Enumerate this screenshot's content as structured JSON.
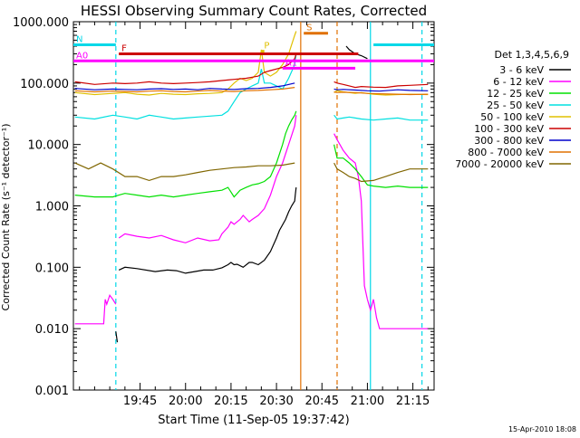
{
  "chart_data": {
    "type": "line",
    "title": "HESSI Observing Summary Count Rates, Corrected",
    "xlabel": "Start Time (11-Sep-05 19:37:42)",
    "ylabel": "Corrected Count Rate (s⁻¹ detector⁻¹)",
    "ylim": [
      0.001,
      1000
    ],
    "yscale": "log",
    "xlim_minutes": [
      -37,
      82
    ],
    "x_tick_labels": [
      "19:45",
      "20:00",
      "20:15",
      "20:30",
      "20:45",
      "21:00",
      "21:15"
    ],
    "x_tick_minutes": [
      -15,
      0,
      15,
      30,
      45,
      60,
      75
    ],
    "y_tick_labels": [
      "0.001",
      "0.010",
      "0.100",
      "1.000",
      "10.000",
      "100.000",
      "1000.000"
    ],
    "y_tick_values": [
      0.001,
      0.01,
      0.1,
      1,
      10,
      100,
      1000
    ],
    "legend_title": "Det 1,3,4,5,6,9",
    "legend_position": "right",
    "footer_date": "15-Apr-2010 18:08",
    "series": [
      {
        "name": "3 - 6 keV",
        "color": "#000000",
        "segments": [
          {
            "x": [
              -23,
              -22.5
            ],
            "y": [
              0.009,
              0.006
            ]
          },
          {
            "x": [
              -22,
              -20,
              -16,
              -10,
              -6,
              -3,
              0,
              3,
              6,
              9,
              12,
              14,
              15,
              16,
              17,
              19,
              21,
              22,
              24,
              26,
              28,
              30,
              31,
              33,
              34,
              35,
              36,
              36.2,
              36.5
            ],
            "y": [
              0.09,
              0.1,
              0.095,
              0.085,
              0.09,
              0.088,
              0.08,
              0.085,
              0.09,
              0.09,
              0.098,
              0.11,
              0.12,
              0.11,
              0.112,
              0.1,
              0.12,
              0.12,
              0.11,
              0.13,
              0.18,
              0.3,
              0.4,
              0.6,
              0.8,
              1.0,
              1.2,
              1.5,
              2.0
            ]
          },
          {
            "x": [
              53,
              54,
              56,
              58,
              60
            ],
            "y": [
              400,
              350,
              300,
              280,
              250
            ]
          }
        ]
      },
      {
        "name": "6 - 12 keV",
        "color": "#ff00ff",
        "segments": [
          {
            "x": [
              -36.5,
              -30,
              -27,
              -26.5,
              -26,
              -25,
              -24,
              -23
            ],
            "y": [
              0.012,
              0.012,
              0.012,
              0.03,
              0.025,
              0.035,
              0.03,
              0.025
            ]
          },
          {
            "x": [
              -22,
              -20,
              -16,
              -12,
              -8,
              -4,
              0,
              4,
              8,
              11,
              12,
              14,
              15,
              16,
              18,
              19,
              21,
              22,
              24,
              26,
              28,
              30,
              32,
              34,
              36,
              36.5
            ],
            "y": [
              0.3,
              0.35,
              0.32,
              0.3,
              0.33,
              0.28,
              0.25,
              0.3,
              0.27,
              0.28,
              0.35,
              0.45,
              0.55,
              0.5,
              0.6,
              0.7,
              0.55,
              0.6,
              0.7,
              0.9,
              1.5,
              3.0,
              5.0,
              10.0,
              20.0,
              30.0
            ]
          },
          {
            "x": [
              49,
              50,
              52,
              54,
              56,
              57,
              58,
              59,
              60
            ],
            "y": [
              15,
              12,
              8,
              6,
              5,
              3,
              1.2,
              0.05,
              0.03
            ]
          },
          {
            "x": [
              60,
              61,
              62,
              63,
              64,
              80
            ],
            "y": [
              0.03,
              0.02,
              0.03,
              0.015,
              0.01,
              0.01
            ]
          }
        ]
      },
      {
        "name": "12 - 25 keV",
        "color": "#00e000",
        "segments": [
          {
            "x": [
              -36.5,
              -30,
              -24,
              -22,
              -20,
              -16,
              -12,
              -8,
              -4,
              0,
              4,
              8,
              12,
              14,
              16,
              18,
              20,
              22,
              24,
              26,
              28,
              30,
              32,
              33,
              34,
              35,
              36,
              36.5
            ],
            "y": [
              1.5,
              1.4,
              1.4,
              1.5,
              1.6,
              1.5,
              1.4,
              1.5,
              1.4,
              1.5,
              1.6,
              1.7,
              1.8,
              2.0,
              1.4,
              1.8,
              2.0,
              2.2,
              2.3,
              2.5,
              3.0,
              5.0,
              10.0,
              15.0,
              20.0,
              25.0,
              30.0,
              35.0
            ]
          },
          {
            "x": [
              49,
              50,
              52,
              54,
              56,
              58,
              60,
              62,
              66,
              70,
              74,
              80
            ],
            "y": [
              10,
              6,
              6,
              5,
              4,
              3,
              2.2,
              2.1,
              2.0,
              2.1,
              2.0,
              2.0
            ]
          }
        ]
      },
      {
        "name": "25 - 50 keV",
        "color": "#00e0e0",
        "segments": [
          {
            "x": [
              -36.5,
              -30,
              -24,
              -20,
              -16,
              -12,
              -8,
              -4,
              0,
              4,
              8,
              12,
              14,
              16,
              18,
              20,
              22,
              24,
              25,
              26,
              28,
              30,
              32,
              34,
              36,
              36.5
            ],
            "y": [
              28,
              26,
              30,
              28,
              26,
              30,
              28,
              26,
              27,
              28,
              29,
              30,
              35,
              50,
              70,
              80,
              90,
              100,
              170,
              100,
              100,
              90,
              80,
              120,
              200,
              300
            ]
          },
          {
            "x": [
              49,
              50,
              52,
              54,
              56,
              58,
              62,
              66,
              70,
              74,
              80
            ],
            "y": [
              30,
              26,
              27,
              28,
              27,
              26,
              25,
              26,
              27,
              25,
              25
            ]
          }
        ]
      },
      {
        "name": "50 - 100 keV",
        "color": "#e0c000",
        "segments": [
          {
            "x": [
              -36.5,
              -30,
              -24,
              -20,
              -16,
              -12,
              -8,
              -4,
              0,
              4,
              8,
              12,
              14,
              16,
              18,
              20,
              22,
              24,
              25,
              26,
              28,
              30,
              32,
              34,
              36,
              36.5
            ],
            "y": [
              70,
              65,
              68,
              70,
              66,
              64,
              68,
              66,
              65,
              67,
              68,
              70,
              80,
              100,
              120,
              110,
              120,
              150,
              350,
              150,
              130,
              150,
              200,
              300,
              600,
              700
            ]
          },
          {
            "x": [
              49,
              50,
              52,
              54,
              56,
              58,
              62,
              66,
              70,
              74,
              80
            ],
            "y": [
              70,
              75,
              72,
              70,
              68,
              70,
              66,
              64,
              65,
              66,
              65
            ]
          }
        ]
      },
      {
        "name": "100 - 300 keV",
        "color": "#cc0000",
        "segments": [
          {
            "x": [
              -36.5,
              -30,
              -24,
              -20,
              -16,
              -12,
              -8,
              -4,
              0,
              4,
              8,
              12,
              16,
              20,
              22,
              24,
              26,
              28,
              30,
              32,
              34,
              36,
              36.5
            ],
            "y": [
              105,
              95,
              100,
              98,
              100,
              105,
              100,
              98,
              100,
              102,
              105,
              110,
              115,
              120,
              125,
              130,
              150,
              160,
              170,
              180,
              200,
              250,
              300
            ]
          },
          {
            "x": [
              49,
              50,
              52,
              54,
              56,
              58,
              62,
              66,
              70,
              74,
              80
            ],
            "y": [
              105,
              100,
              95,
              90,
              85,
              88,
              86,
              85,
              90,
              92,
              95
            ]
          }
        ]
      },
      {
        "name": "300 - 800 keV",
        "color": "#0000cc",
        "segments": [
          {
            "x": [
              -36.5,
              -30,
              -24,
              -20,
              -16,
              -12,
              -8,
              -4,
              0,
              4,
              8,
              12,
              16,
              20,
              24,
              28,
              32,
              36
            ],
            "y": [
              82,
              78,
              80,
              79,
              78,
              80,
              81,
              79,
              80,
              78,
              82,
              80,
              79,
              81,
              82,
              85,
              90,
              100
            ]
          },
          {
            "x": [
              49,
              50,
              52,
              56,
              60,
              64,
              70,
              74,
              80
            ],
            "y": [
              80,
              78,
              79,
              77,
              75,
              74,
              78,
              76,
              75
            ]
          }
        ]
      },
      {
        "name": "800 - 7000 keV",
        "color": "#e07000",
        "segments": [
          {
            "x": [
              -36.5,
              -30,
              -24,
              -20,
              -16,
              -12,
              -8,
              -4,
              0,
              4,
              8,
              12,
              16,
              20,
              24,
              28,
              32,
              36
            ],
            "y": [
              75,
              72,
              74,
              73,
              72,
              74,
              75,
              73,
              72,
              74,
              76,
              74,
              73,
              75,
              76,
              78,
              80,
              85
            ]
          },
          {
            "x": [
              49,
              50,
              52,
              56,
              60,
              64,
              70,
              74,
              80
            ],
            "y": [
              72,
              70,
              71,
              70,
              68,
              67,
              66,
              65,
              66
            ]
          }
        ]
      },
      {
        "name": "7000 - 20000 keV",
        "color": "#806600",
        "segments": [
          {
            "x": [
              -36.5,
              -32,
              -28,
              -24,
              -20,
              -16,
              -12,
              -8,
              -4,
              0,
              4,
              8,
              12,
              16,
              20,
              24,
              28,
              32,
              36
            ],
            "y": [
              5,
              4,
              5,
              4,
              3,
              3,
              2.6,
              3,
              3,
              3.2,
              3.5,
              3.8,
              4,
              4.2,
              4.3,
              4.5,
              4.5,
              4.6,
              5
            ]
          },
          {
            "x": [
              49,
              50,
              52,
              54,
              56,
              58,
              62,
              66,
              70,
              74,
              80
            ],
            "y": [
              5,
              4,
              3.5,
              3,
              2.8,
              2.5,
              2.6,
              3,
              3.5,
              4,
              4
            ]
          }
        ]
      }
    ],
    "flag_bars": [
      {
        "label": "N",
        "color": "#00d8e8",
        "y": 420,
        "segments": [
          [
            -37,
            -23
          ],
          [
            62,
            82
          ]
        ]
      },
      {
        "label": "F",
        "color": "#cc0000",
        "y": 300,
        "segments": [
          [
            -22,
            57
          ]
        ]
      },
      {
        "label": "S",
        "color": "#e07000",
        "y": 650,
        "segments": [
          [
            39,
            47
          ]
        ]
      },
      {
        "label": "A1",
        "color": "#ff00ff",
        "y": 175,
        "segments": [
          [
            32,
            56
          ]
        ]
      },
      {
        "label": "A0",
        "color": "#ff00ff",
        "y": 230,
        "segments": [
          [
            -37,
            82
          ]
        ]
      },
      {
        "label": "P",
        "color": "#e0c000",
        "y": 330,
        "segments": [
          [
            25,
            26
          ]
        ]
      }
    ],
    "vertical_markers": [
      {
        "x": -23,
        "color": "#00d8e8",
        "style": "dashed"
      },
      {
        "x": 38,
        "color": "#e07000",
        "style": "solid"
      },
      {
        "x": 50,
        "color": "#e07000",
        "style": "dashed"
      },
      {
        "x": 61,
        "color": "#00d8e8",
        "style": "solid"
      },
      {
        "x": 78,
        "color": "#00d8e8",
        "style": "dashed"
      }
    ]
  }
}
